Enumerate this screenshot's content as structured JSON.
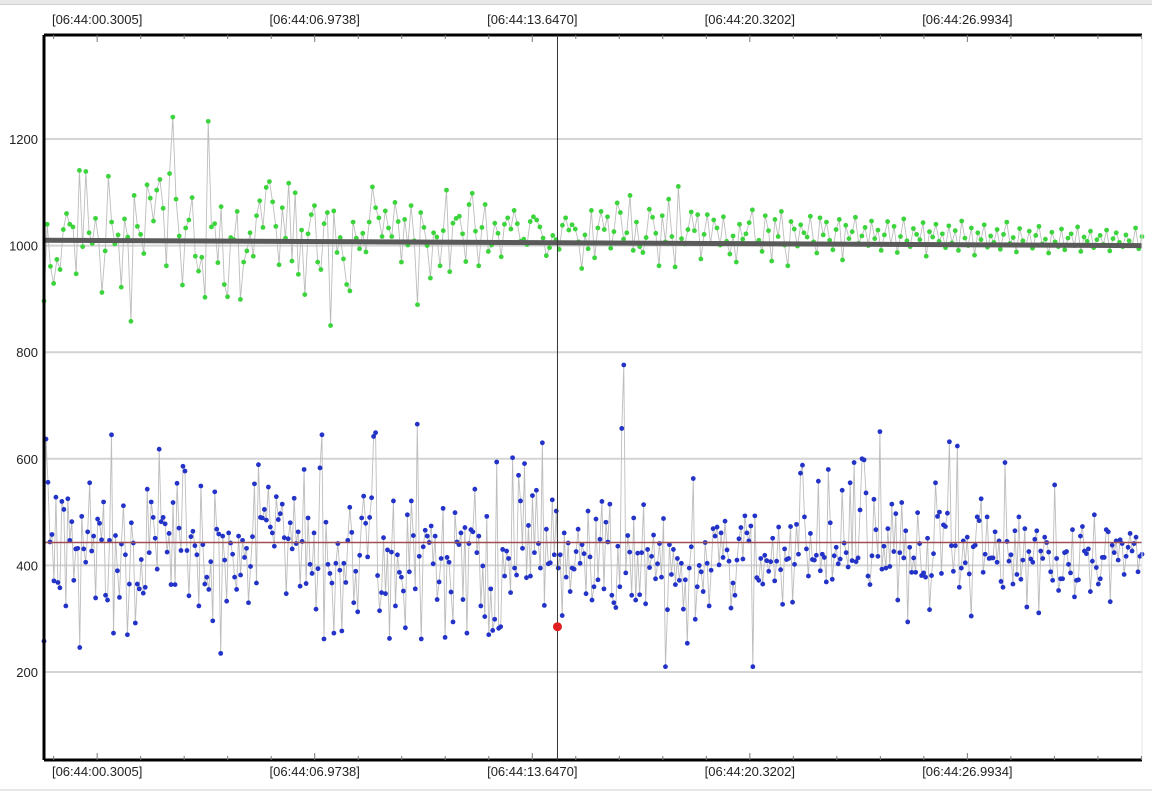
{
  "chart_data": {
    "type": "scatter",
    "title": "",
    "xlabel": "",
    "ylabel": "",
    "x_tick_labels": [
      "[06:44:00.3005]",
      "[06:44:06.9738]",
      "[06:44:13.6470]",
      "[06:44:20.3202]",
      "[06:44:26.9934]"
    ],
    "x_tick_seconds": [
      0.3005,
      6.9738,
      13.647,
      20.3202,
      26.9934
    ],
    "xlim_seconds": [
      -1.33,
      32.35
    ],
    "y_ticks": [
      200,
      400,
      600,
      800,
      1000,
      1200
    ],
    "ylim": [
      35,
      1395
    ],
    "grid": true,
    "cursor_x_seconds": 14.42,
    "highlight_point": {
      "x_seconds": 14.42,
      "y": 285,
      "color": "#e02020"
    },
    "series": [
      {
        "color": "#3cd43c",
        "values": [
          896,
          1040,
          961,
          929,
          974,
          955,
          1030,
          1060,
          1040,
          1035,
          947,
          1141,
          998,
          1139,
          1024,
          1004,
          1051,
          1009,
          912,
          990,
          1130,
          1044,
          1003,
          1020,
          922,
          1050,
          1016,
          858,
          1094,
          1036,
          1021,
          985,
          1114,
          1089,
          1046,
          1104,
          1124,
          1070,
          962,
          1135,
          1241,
          1087,
          1018,
          926,
          1033,
          1048,
          1090,
          980,
          952,
          978,
          903,
          1233,
          1035,
          1041,
          968,
          1073,
          927,
          904,
          1015,
          1011,
          1064,
          899,
          969,
          990,
          1024,
          980,
          1056,
          1084,
          1034,
          1109,
          1120,
          1082,
          1036,
          964,
          1071,
          1014,
          1117,
          971,
          1099,
          946,
          1029,
          908,
          1022,
          1058,
          1075,
          969,
          955,
          1041,
          1062,
          850,
          1065,
          987,
          1015,
          975,
          927,
          915,
          1044,
          1014,
          994,
          1023,
          988,
          1044,
          1110,
          1071,
          1052,
          1017,
          1065,
          1033,
          1017,
          1081,
          1045,
          969,
          1049,
          1001,
          1075,
          1009,
          889,
          1062,
          1034,
          1000,
          939,
          1024,
          1016,
          962,
          1028,
          1104,
          951,
          1042,
          1051,
          1055,
          1022,
          970,
          1077,
          1098,
          1027,
          962,
          1034,
          1077,
          989,
          1001,
          1042,
          1023,
          979,
          1040,
          1052,
          1031,
          1066,
          1041,
          1008,
          1012,
          1002,
          1045,
          1054,
          1048,
          1035,
          1014,
          981,
          996,
          1019,
          1011,
          993,
          1038,
          1052,
          1029,
          1039,
          1031,
          1007,
          957,
          1020,
          994,
          1066,
          977,
          1033,
          1064,
          1030,
          1054,
          995,
          1026,
          1080,
          1062,
          1012,
          1024,
          1094,
          991,
          1044,
          998,
          987,
          1015,
          1068,
          1053,
          1023,
          962,
          1056,
          1007,
          1087,
          1017,
          960,
          1111,
          1013,
          1003,
          1030,
          1063,
          1028,
          1058,
          975,
          1021,
          1058,
          1004,
          1048,
          1033,
          1001,
          1054,
          1008,
          984,
          1018,
          969,
          1040,
          1012,
          1022,
          1043,
          1067,
          1004,
          1010,
          989,
          1056,
          1028,
          971,
          1049,
          1017,
          1064,
          1001,
          962,
          1045,
          1031,
          999,
          1039,
          1024,
          1016,
          1055,
          1007,
          986,
          1052,
          1020,
          1044,
          1010,
          992,
          1030,
          1049,
          973,
          1038,
          1013,
          1026,
          1053,
          1004,
          1018,
          1034,
          1000,
          1046,
          1013,
          1029,
          991,
          1020,
          1045,
          1002,
          1036,
          987,
          1017,
          1050,
          1009,
          998,
          1032,
          1021,
          1011,
          1043,
          980,
          1026,
          1016,
          1040,
          1008,
          1022,
          996,
          1037,
          1005,
          1028,
          991,
          1046,
          1014,
          1000,
          1033,
          982,
          1024,
          1011,
          1039,
          997,
          1018,
          1006,
          1030,
          993,
          1021,
          1044,
          1004,
          1015,
          988,
          1032,
          1009,
          1001,
          1027,
          995,
          1019,
          1036,
          1003,
          1012,
          986,
          1025,
          1007,
          998,
          1031,
          992,
          1014,
          1022,
          1000,
          1035,
          989,
          1016,
          1008,
          1027,
          996,
          1011,
          1019,
          1002,
          1029,
          990,
          1013,
          1024,
          1006,
          998,
          1020,
          1009,
          1001,
          1033,
          994,
          1017
        ],
        "fit_line": [
          1010,
          1000
        ]
      },
      {
        "color": "#2333c8",
        "values": [
          258,
          637,
          556,
          444,
          458,
          371,
          528,
          368,
          358,
          520,
          505,
          324,
          525,
          447,
          482,
          372,
          431,
          432,
          246,
          492,
          431,
          406,
          463,
          555,
          427,
          455,
          339,
          487,
          479,
          448,
          519,
          344,
          335,
          447,
          645,
          273,
          456,
          390,
          340,
          440,
          512,
          420,
          270,
          365,
          480,
          442,
          292,
          365,
          356,
          411,
          348,
          359,
          543,
          424,
          519,
          490,
          451,
          393,
          618,
          482,
          490,
          478,
          425,
          460,
          364,
          518,
          364,
          554,
          470,
          428,
          586,
          577,
          428,
          343,
          454,
          464,
          437,
          420,
          324,
          549,
          439,
          365,
          378,
          355,
          407,
          296,
          538,
          468,
          459,
          235,
          455,
          410,
          333,
          461,
          442,
          421,
          378,
          355,
          455,
          382,
          447,
          415,
          432,
          330,
          398,
          454,
          553,
          367,
          589,
          490,
          489,
          505,
          485,
          547,
          472,
          461,
          436,
          529,
          486,
          497,
          515,
          452,
          347,
          450,
          480,
          431,
          526,
          441,
          463,
          361,
          445,
          580,
          366,
          489,
          402,
          385,
          461,
          318,
          394,
          583,
          645,
          262,
          481,
          402,
          385,
          367,
          273,
          404,
          441,
          391,
          277,
          404,
          368,
          447,
          509,
          462,
          330,
          389,
          313,
          419,
          489,
          530,
          479,
          416,
          490,
          527,
          642,
          649,
          381,
          315,
          349,
          452,
          347,
          429,
          263,
          425,
          521,
          324,
          420,
          387,
          378,
          352,
          283,
          495,
          388,
          521,
          456,
          356,
          665,
          417,
          262,
          435,
          466,
          455,
          443,
          474,
          403,
          455,
          336,
          369,
          413,
          507,
          265,
          415,
          406,
          350,
          294,
          499,
          444,
          439,
          461,
          336,
          471,
          273,
          441,
          467,
          463,
          543,
          424,
          455,
          324,
          399,
          304,
          492,
          270,
          356,
          278,
          299,
          594,
          282,
          285,
          430,
          380,
          427,
          413,
          349,
          602,
          395,
          382,
          569,
          521,
          432,
          591,
          377,
          475,
          380,
          531,
          424,
          541,
          441,
          395,
          630,
          325,
          468,
          403,
          405,
          523,
          420,
          502,
          395,
          420,
          306,
          461,
          378,
          442,
          351,
          395,
          393,
          426,
          468,
          404,
          439,
          422,
          347,
          502,
          416,
          335,
          360,
          487,
          373,
          449,
          520,
          356,
          481,
          444,
          515,
          344,
          330,
          321,
          436,
          360,
          657,
          776,
          386,
          456,
          425,
          344,
          489,
          335,
          423,
          345,
          424,
          514,
          328,
          430,
          396,
          417,
          457,
          375,
          403,
          441,
          378,
          488,
          210,
          317,
          439,
          383,
          430,
          364,
          413,
          372,
          404,
          318,
          373,
          254,
          395,
          435,
          563,
          299,
          360,
          400,
          388,
          351,
          443,
          404,
          324,
          391,
          469,
          455,
          472,
          401,
          461,
          415,
          483,
          429,
          408,
          320,
          367,
          344,
          410,
          450,
          471,
          412,
          493,
          461,
          446,
          474,
          210,
          493,
          377,
          372,
          413,
          365,
          419,
          409,
          389,
          407,
          451,
          371,
          408,
          472,
          392,
          327,
          431,
          411,
          413,
          473,
          331,
          402,
          477,
          421,
          573,
          588,
          491,
          431,
          380,
          460,
          411,
          410,
          419,
          558,
          390,
          421,
          415,
          369,
          580,
          480,
          374,
          418,
          434,
          403,
          412,
          541,
          442,
          424,
          397,
          555,
          409,
          593,
          407,
          414,
          504,
          600,
          598,
          536,
          380,
          364,
          418,
          524,
          467,
          417,
          651,
          393,
          436,
          395,
          469,
          398,
          515,
          426,
          497,
          335,
          424,
          518,
          414,
          465,
          294,
          434,
          387,
          414,
          387,
          499,
          441,
          381,
          386,
          378,
          451,
          317,
          381,
          422,
          555,
          492,
          500,
          385,
          476,
          473,
          498,
          632,
          437,
          389,
          437,
          624,
          359,
          395,
          446,
          405,
          453,
          384,
          305,
          435,
          438,
          491,
          484,
          525,
          387,
          421,
          491,
          413,
          414,
          414,
          463,
          406,
          446,
          370,
          359,
          593,
          445,
          408,
          420,
          365,
          465,
          383,
          491,
          374,
          410,
          469,
          322,
          426,
          412,
          406,
          449,
          465,
          311,
          427,
          413,
          453,
          443,
          425,
          388,
          372,
          551,
          413,
          353,
          375,
          375,
          424,
          426,
          402,
          386,
          467,
          341,
          372,
          373,
          455,
          473,
          427,
          422,
          431,
          351,
          408,
          495,
          396,
          365,
          375,
          415,
          415,
          467,
          463,
          332,
          438,
          424,
          446,
          410,
          448,
          441,
          383,
          417,
          434,
          460,
          427,
          441,
          453,
          388,
          417,
          421
        ],
        "fit_line": [
          443,
          443
        ]
      }
    ]
  }
}
